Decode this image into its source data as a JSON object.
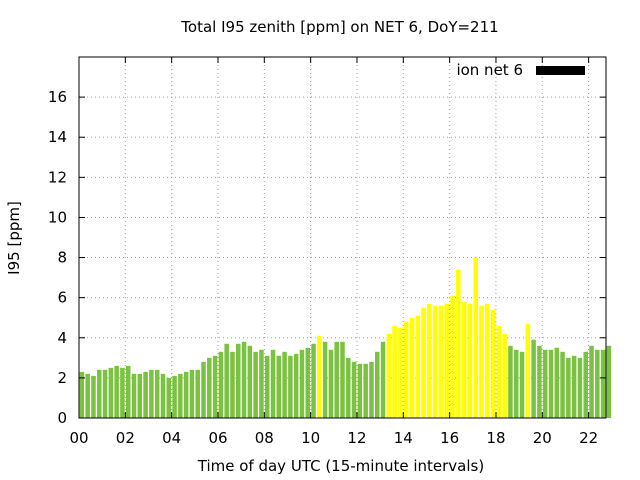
{
  "chart_data": {
    "type": "bar",
    "title": "Total I95 zenith [ppm] on NET 6, DoY=211",
    "xlabel": "Time of day UTC (15-minute intervals)",
    "ylabel": "I95 [ppm]",
    "ylim": [
      0,
      18
    ],
    "xlim": [
      0,
      22.75
    ],
    "yticks": [
      0,
      2,
      4,
      6,
      8,
      10,
      12,
      14,
      16
    ],
    "xticks": [
      "00",
      "02",
      "04",
      "06",
      "08",
      "10",
      "12",
      "14",
      "16",
      "18",
      "20",
      "22"
    ],
    "grid": true,
    "legend": {
      "position": "top-right",
      "entries": [
        {
          "label": "ion net 6",
          "color": "#000000"
        }
      ]
    },
    "interval_hours": 0.25,
    "colors": {
      "normal": "#7cc242",
      "high": "#ffff00"
    },
    "values": [
      2.3,
      2.2,
      2.1,
      2.4,
      2.4,
      2.5,
      2.6,
      2.5,
      2.6,
      2.2,
      2.2,
      2.3,
      2.4,
      2.4,
      2.2,
      2.0,
      2.1,
      2.2,
      2.3,
      2.4,
      2.4,
      2.8,
      3.0,
      3.1,
      3.3,
      3.7,
      3.3,
      3.7,
      3.8,
      3.6,
      3.3,
      3.4,
      3.1,
      3.4,
      3.1,
      3.3,
      3.1,
      3.2,
      3.4,
      3.5,
      3.7,
      4.1,
      3.8,
      3.4,
      3.8,
      3.8,
      3.0,
      2.8,
      2.7,
      2.7,
      2.8,
      3.3,
      3.8,
      4.2,
      4.6,
      4.5,
      4.8,
      5.0,
      5.1,
      5.5,
      5.7,
      5.6,
      5.6,
      5.7,
      6.1,
      7.4,
      5.8,
      5.7,
      8.0,
      5.6,
      5.7,
      5.4,
      4.6,
      4.2,
      3.6,
      3.4,
      3.3,
      4.7,
      3.9,
      3.6,
      3.4,
      3.4,
      3.5,
      3.3,
      3.0,
      3.1,
      3.0,
      3.3,
      3.6,
      3.4,
      3.4,
      3.6
    ],
    "highlighted": [
      41,
      53,
      54,
      55,
      56,
      57,
      58,
      59,
      60,
      61,
      62,
      63,
      64,
      65,
      66,
      67,
      68,
      69,
      70,
      71,
      72,
      73,
      77
    ]
  }
}
